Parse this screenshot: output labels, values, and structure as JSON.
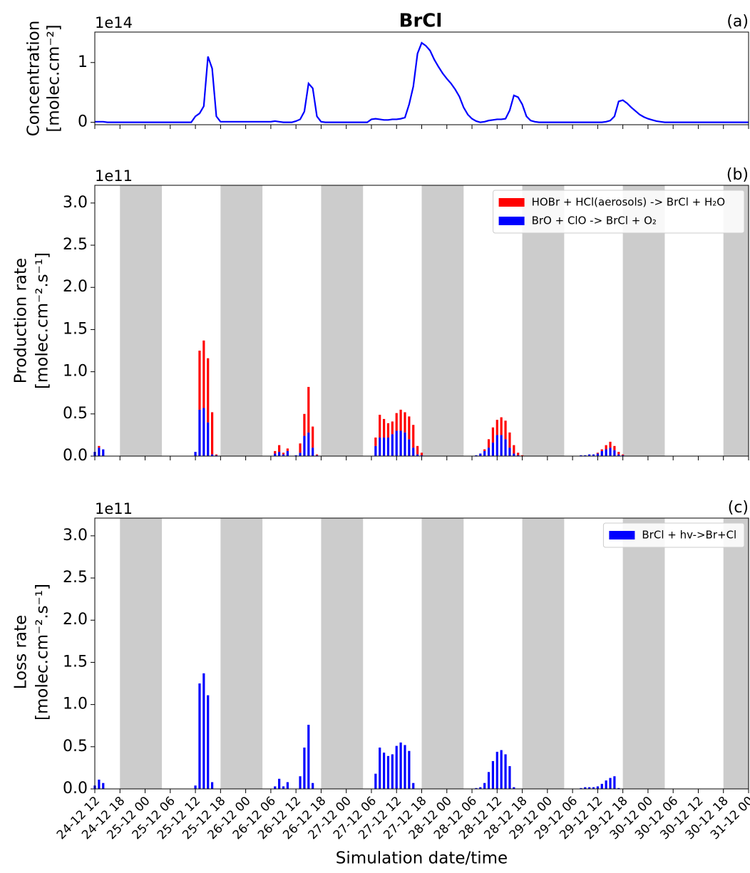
{
  "chart_data": [
    {
      "type": "line",
      "title": "BrCl",
      "panel_label": "(a)",
      "offset_label": "1e14",
      "y_label": [
        "Concentration",
        "[molec.cm⁻²]"
      ],
      "x": [
        0,
        1,
        2,
        3,
        23,
        24,
        25,
        26,
        27,
        28,
        29,
        30,
        42,
        43,
        44,
        45,
        47,
        48,
        49,
        50,
        51,
        52,
        53,
        54,
        55,
        65,
        66,
        67,
        68,
        69,
        70,
        71,
        72,
        73,
        74,
        75,
        76,
        77,
        78,
        79,
        80,
        81,
        82,
        83,
        84,
        85,
        86,
        87,
        88,
        89,
        90,
        91,
        92,
        93,
        94,
        95,
        96,
        97,
        98,
        99,
        100,
        101,
        102,
        103,
        104,
        105,
        106,
        121,
        122,
        123,
        124,
        125,
        126,
        127,
        128,
        129,
        130,
        131,
        132,
        133,
        134,
        135,
        136,
        156
      ],
      "values": [
        0.01,
        0.01,
        0.01,
        0,
        0,
        0.1,
        0.15,
        0.27,
        1.1,
        0.9,
        0.1,
        0.01,
        0.01,
        0.02,
        0.01,
        0,
        0,
        0.02,
        0.05,
        0.18,
        0.65,
        0.57,
        0.1,
        0.01,
        0,
        0,
        0.05,
        0.06,
        0.05,
        0.04,
        0.04,
        0.05,
        0.05,
        0.06,
        0.08,
        0.3,
        0.6,
        1.15,
        1.33,
        1.28,
        1.2,
        1.05,
        0.93,
        0.82,
        0.73,
        0.65,
        0.55,
        0.43,
        0.25,
        0.13,
        0.06,
        0.02,
        0,
        0.01,
        0.03,
        0.04,
        0.05,
        0.05,
        0.06,
        0.2,
        0.45,
        0.42,
        0.3,
        0.1,
        0.03,
        0.01,
        0,
        0,
        0.01,
        0.03,
        0.1,
        0.35,
        0.37,
        0.32,
        0.25,
        0.19,
        0.13,
        0.09,
        0.06,
        0.04,
        0.02,
        0.01,
        0,
        0
      ],
      "color": "#0000ff",
      "xlim": [
        0,
        156
      ],
      "xticks": [
        0,
        6,
        12,
        18,
        24,
        30,
        36,
        42,
        48,
        54,
        60,
        66,
        72,
        78,
        84,
        90,
        96,
        102,
        108,
        114,
        120,
        126,
        132,
        138,
        144,
        150,
        156
      ],
      "xtick_labels": false,
      "ylim": [
        -0.04,
        1.51
      ],
      "yticks": [
        0,
        1
      ]
    },
    {
      "type": "stacked_bar",
      "panel_label": "(b)",
      "offset_label": "1e11",
      "y_label": [
        "Production rate",
        "[molec.cm⁻².s⁻¹]"
      ],
      "x": [
        0,
        1,
        2,
        24,
        25,
        26,
        27,
        28,
        29,
        43,
        44,
        45,
        46,
        47,
        48,
        49,
        50,
        51,
        52,
        53,
        67,
        68,
        69,
        70,
        71,
        72,
        73,
        74,
        75,
        76,
        77,
        78,
        91,
        92,
        93,
        94,
        95,
        96,
        97,
        98,
        99,
        100,
        101,
        102,
        116,
        117,
        118,
        119,
        120,
        121,
        122,
        123,
        124,
        125,
        126
      ],
      "series": [
        {
          "name": "HOBr + HCl(aerosols) -> BrCl + H₂O",
          "color": "#ff0000",
          "values": [
            0,
            0.02,
            0,
            0,
            0.7,
            0.8,
            0.76,
            0.5,
            0.01,
            0.03,
            0.08,
            0.02,
            0.03,
            0,
            0,
            0.11,
            0.26,
            0.54,
            0.25,
            0.01,
            0.1,
            0.27,
            0.22,
            0.17,
            0.15,
            0.21,
            0.25,
            0.24,
            0.27,
            0.27,
            0.1,
            0.03,
            0,
            0,
            0.02,
            0.1,
            0.18,
            0.18,
            0.21,
            0.22,
            0.18,
            0.1,
            0.03,
            0.01,
            0,
            0,
            0,
            0,
            0.01,
            0.02,
            0.05,
            0.07,
            0.05,
            0.03,
            0.01
          ]
        },
        {
          "name": "BrO + ClO -> BrCl + O₂",
          "color": "#0000ff",
          "values": [
            0.05,
            0.1,
            0.08,
            0.05,
            0.55,
            0.57,
            0.4,
            0.02,
            0.01,
            0.03,
            0.05,
            0.02,
            0.06,
            0,
            0.01,
            0.04,
            0.24,
            0.28,
            0.1,
            0.01,
            0.12,
            0.22,
            0.22,
            0.22,
            0.26,
            0.3,
            0.3,
            0.28,
            0.2,
            0.1,
            0.02,
            0.01,
            0.01,
            0.03,
            0.06,
            0.1,
            0.16,
            0.25,
            0.25,
            0.2,
            0.1,
            0.03,
            0.01,
            0,
            0.01,
            0.01,
            0.02,
            0.02,
            0.03,
            0.06,
            0.08,
            0.1,
            0.07,
            0.02,
            0.01
          ]
        }
      ],
      "legend": "upper right",
      "shaded_x": [
        [
          6,
          16
        ],
        [
          30,
          40
        ],
        [
          54,
          64
        ],
        [
          78,
          88
        ],
        [
          102,
          112
        ],
        [
          126,
          136
        ],
        [
          150,
          156
        ]
      ],
      "shade_color": "#cccccc",
      "xlim": [
        0,
        156
      ],
      "xticks": [
        0,
        6,
        12,
        18,
        24,
        30,
        36,
        42,
        48,
        54,
        60,
        66,
        72,
        78,
        84,
        90,
        96,
        102,
        108,
        114,
        120,
        126,
        132,
        138,
        144,
        150,
        156
      ],
      "xtick_labels": false,
      "ylim": [
        0,
        3.21
      ],
      "yticks": [
        {
          "value": 0,
          "label": "0.0"
        },
        0.5,
        {
          "value": 1,
          "label": "1.0"
        },
        1.5,
        {
          "value": 2,
          "label": "2.0"
        },
        2.5,
        {
          "value": 3,
          "label": "3.0"
        }
      ]
    },
    {
      "type": "stacked_bar",
      "panel_label": "(c)",
      "offset_label": "1e11",
      "y_label": [
        "Loss rate",
        "[molec.cm⁻².s⁻¹]"
      ],
      "x_label": "Simulation date/time",
      "x": [
        0,
        1,
        2,
        24,
        25,
        26,
        27,
        28,
        29,
        43,
        44,
        45,
        46,
        47,
        48,
        49,
        50,
        51,
        52,
        53,
        67,
        68,
        69,
        70,
        71,
        72,
        73,
        74,
        75,
        76,
        77,
        78,
        91,
        92,
        93,
        94,
        95,
        96,
        97,
        98,
        99,
        100,
        101,
        102,
        116,
        117,
        118,
        119,
        120,
        121,
        122,
        123,
        124,
        125,
        126
      ],
      "series": [
        {
          "name": "BrCl + hv->Br+Cl",
          "color": "#0000ff",
          "values": [
            0.04,
            0.11,
            0.07,
            0.04,
            1.25,
            1.37,
            1.11,
            0.08,
            0,
            0.03,
            0.12,
            0.03,
            0.08,
            0,
            0,
            0.15,
            0.49,
            0.76,
            0.07,
            0,
            0.18,
            0.49,
            0.43,
            0.39,
            0.41,
            0.51,
            0.55,
            0.52,
            0.45,
            0.07,
            0,
            0,
            0.01,
            0.02,
            0.07,
            0.2,
            0.33,
            0.44,
            0.46,
            0.41,
            0.27,
            0.02,
            0,
            0,
            0.01,
            0.02,
            0.02,
            0.02,
            0.03,
            0.06,
            0.1,
            0.13,
            0.15,
            0.01,
            0
          ]
        }
      ],
      "legend": "upper right",
      "shaded_x": [
        [
          6,
          16
        ],
        [
          30,
          40
        ],
        [
          54,
          64
        ],
        [
          78,
          88
        ],
        [
          102,
          112
        ],
        [
          126,
          136
        ],
        [
          150,
          156
        ]
      ],
      "shade_color": "#cccccc",
      "xlim": [
        0,
        156
      ],
      "xticks": [
        {
          "value": 0,
          "label": "24-12 12"
        },
        {
          "value": 6,
          "label": "24-12 18"
        },
        {
          "value": 12,
          "label": "25-12 00"
        },
        {
          "value": 18,
          "label": "25-12 06"
        },
        {
          "value": 24,
          "label": "25-12 12"
        },
        {
          "value": 30,
          "label": "25-12 18"
        },
        {
          "value": 36,
          "label": "26-12 00"
        },
        {
          "value": 42,
          "label": "26-12 06"
        },
        {
          "value": 48,
          "label": "26-12 12"
        },
        {
          "value": 54,
          "label": "26-12 18"
        },
        {
          "value": 60,
          "label": "27-12 00"
        },
        {
          "value": 66,
          "label": "27-12 06"
        },
        {
          "value": 72,
          "label": "27-12 12"
        },
        {
          "value": 78,
          "label": "27-12 18"
        },
        {
          "value": 84,
          "label": "28-12 00"
        },
        {
          "value": 90,
          "label": "28-12 06"
        },
        {
          "value": 96,
          "label": "28-12 12"
        },
        {
          "value": 102,
          "label": "28-12 18"
        },
        {
          "value": 108,
          "label": "29-12 00"
        },
        {
          "value": 114,
          "label": "29-12 06"
        },
        {
          "value": 120,
          "label": "29-12 12"
        },
        {
          "value": 126,
          "label": "29-12 18"
        },
        {
          "value": 132,
          "label": "30-12 00"
        },
        {
          "value": 138,
          "label": "30-12 06"
        },
        {
          "value": 144,
          "label": "30-12 12"
        },
        {
          "value": 150,
          "label": "30-12 18"
        },
        {
          "value": 156,
          "label": "31-12 00"
        }
      ],
      "ylim": [
        0,
        3.21
      ],
      "yticks": [
        {
          "value": 0,
          "label": "0.0"
        },
        0.5,
        {
          "value": 1,
          "label": "1.0"
        },
        1.5,
        {
          "value": 2,
          "label": "2.0"
        },
        2.5,
        {
          "value": 3,
          "label": "3.0"
        }
      ]
    }
  ]
}
